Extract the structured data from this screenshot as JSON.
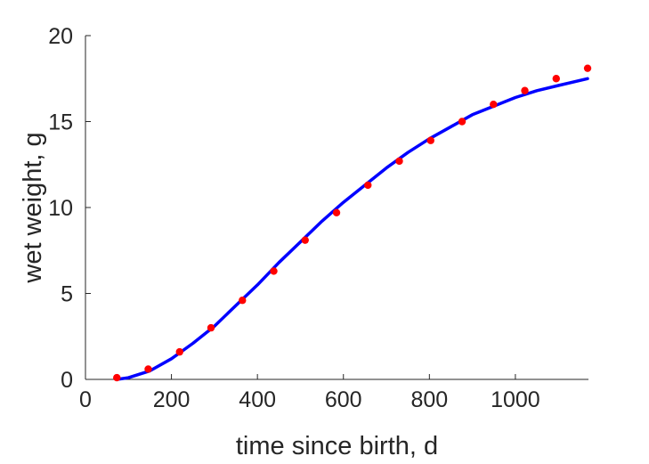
{
  "chart_data": {
    "type": "scatter",
    "title": "",
    "xlabel": "time since birth, d",
    "ylabel": "wet weight, g",
    "xlim": [
      0,
      1170
    ],
    "ylim": [
      0,
      20
    ],
    "xticks": [
      0,
      200,
      400,
      600,
      800,
      1000
    ],
    "yticks": [
      0,
      5,
      10,
      15,
      20
    ],
    "xtick_labels": [
      "0",
      "200",
      "400",
      "600",
      "800",
      "1000"
    ],
    "ytick_labels": [
      "0",
      "5",
      "10",
      "15",
      "20"
    ],
    "grid": false,
    "legend": "none",
    "series": [
      {
        "kind": "points",
        "color": "#ff0000",
        "x": [
          73,
          146,
          219,
          292,
          365,
          438,
          511,
          584,
          657,
          730,
          803,
          876,
          949,
          1022,
          1095,
          1168
        ],
        "y": [
          0.1,
          0.6,
          1.6,
          3.0,
          4.6,
          6.3,
          8.1,
          9.7,
          11.3,
          12.7,
          13.9,
          15.0,
          16.0,
          16.8,
          17.5,
          18.1
        ]
      },
      {
        "kind": "line",
        "color": "#0000ff",
        "x": [
          73,
          100,
          150,
          200,
          250,
          300,
          350,
          400,
          450,
          500,
          550,
          600,
          650,
          700,
          750,
          800,
          850,
          900,
          950,
          1000,
          1050,
          1100,
          1168
        ],
        "y": [
          0.0,
          0.1,
          0.5,
          1.2,
          2.1,
          3.1,
          4.3,
          5.5,
          6.8,
          8.0,
          9.2,
          10.3,
          11.3,
          12.3,
          13.2,
          14.0,
          14.7,
          15.4,
          15.9,
          16.4,
          16.8,
          17.1,
          17.5
        ]
      }
    ]
  }
}
